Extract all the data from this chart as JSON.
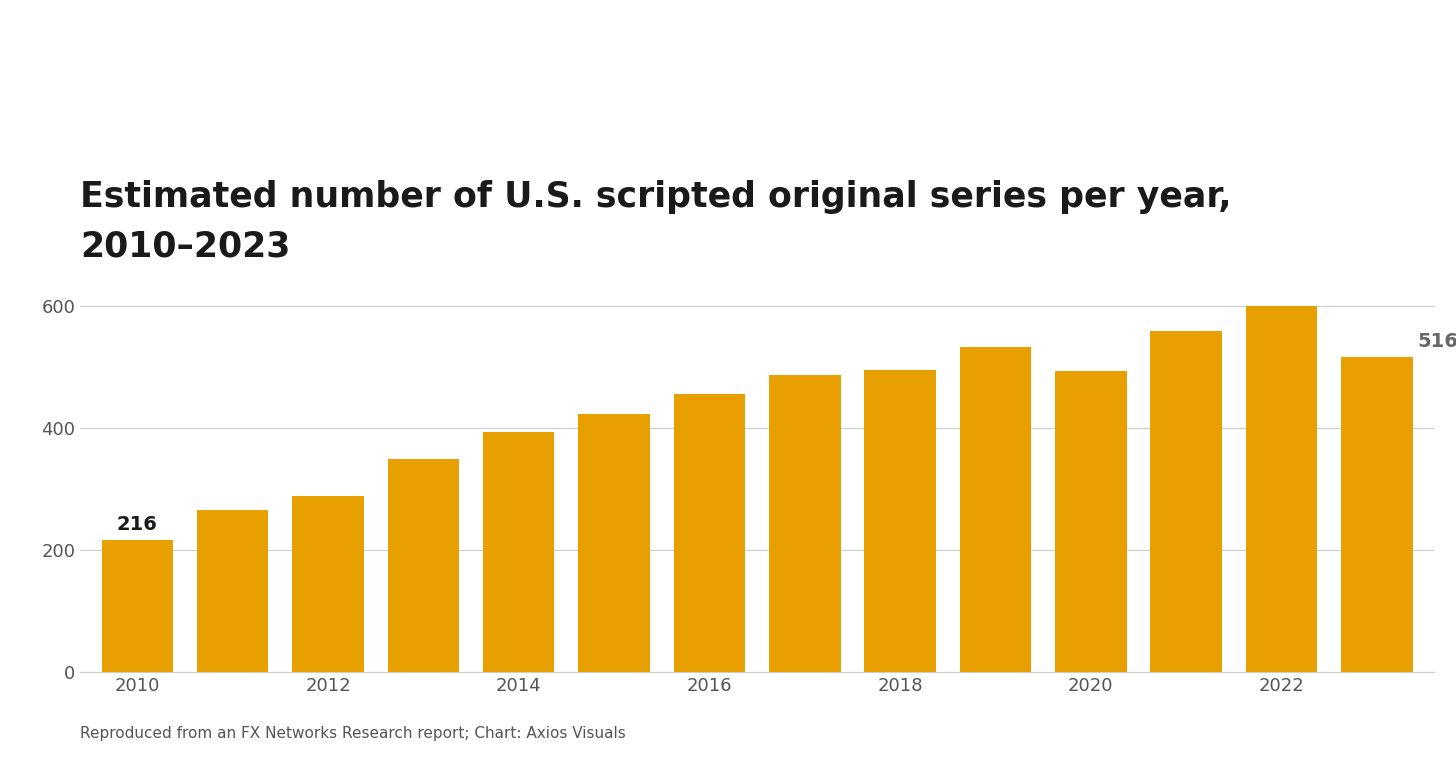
{
  "title_line1": "Estimated number of U.S. scripted original series per year,",
  "title_line2": "2010–2023",
  "years": [
    2010,
    2011,
    2012,
    2013,
    2014,
    2015,
    2016,
    2017,
    2018,
    2019,
    2020,
    2021,
    2022,
    2023
  ],
  "values": [
    216,
    266,
    288,
    349,
    394,
    422,
    455,
    487,
    495,
    532,
    493,
    559,
    599,
    516
  ],
  "bar_color": "#E8A000",
  "background_color": "#ffffff",
  "label_first": "216",
  "label_last": "516",
  "yticks": [
    0,
    200,
    400,
    600
  ],
  "ylim": [
    0,
    650
  ],
  "footnote": "Reproduced from an FX Networks Research report; Chart: Axios Visuals",
  "title_fontsize": 25,
  "tick_fontsize": 13,
  "footnote_fontsize": 11,
  "annotation_fontsize": 14,
  "bar_width": 0.75
}
